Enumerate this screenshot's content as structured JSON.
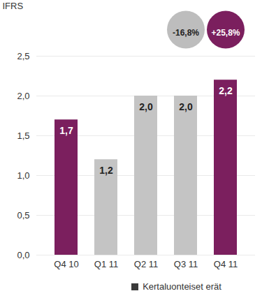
{
  "chart_data": {
    "type": "bar",
    "ylabel": "IFRS",
    "categories": [
      "Q4 10",
      "Q1 11",
      "Q2 11",
      "Q3 11",
      "Q4 11"
    ],
    "values": [
      1.7,
      1.2,
      2.0,
      2.0,
      2.2
    ],
    "value_labels": [
      "1,7",
      "1,2",
      "2,0",
      "2,0",
      "2,2"
    ],
    "colors": [
      "#7b1f5e",
      "#c4c4c4",
      "#c4c4c4",
      "#c4c4c4",
      "#7b1f5e"
    ],
    "ylim": [
      0,
      2.5
    ],
    "yticks": [
      {
        "value": 0,
        "label": "0,0"
      },
      {
        "value": 0.5,
        "label": "0,5"
      },
      {
        "value": 1,
        "label": "1,0"
      },
      {
        "value": 1.5,
        "label": "1,5"
      },
      {
        "value": 2,
        "label": "2,0"
      },
      {
        "value": 2.5,
        "label": "2,5"
      }
    ],
    "grid": true,
    "data_labels": true,
    "annotations": [
      {
        "text": "-16,8%",
        "category": "Q3 11",
        "color": "#bdbdbd"
      },
      {
        "text": "+25,8%",
        "category": "Q4 11",
        "color": "#7b1f5e"
      }
    ],
    "legend": "bottom",
    "legend_items": [
      {
        "name": "Kertaluonteiset erät",
        "color": "#3a3a3a"
      }
    ]
  }
}
